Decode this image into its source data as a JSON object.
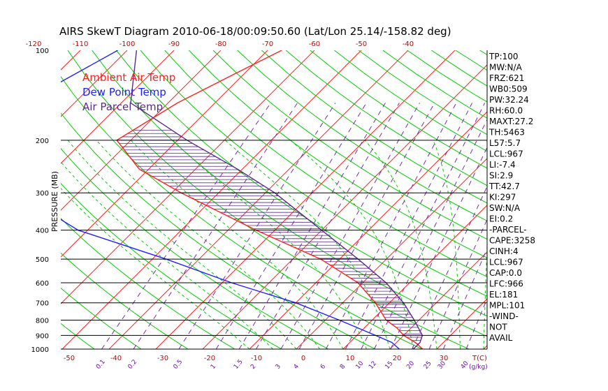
{
  "chart_data": {
    "type": "skewt",
    "title": "AIRS SkewT Diagram 2010-06-18/00:09:50.60 (Lat/Lon 25.14/-158.82 deg)",
    "ylabel": "PRESSURE (MB)",
    "y_scale": "log",
    "ylim": [
      1000,
      100
    ],
    "pressure_ticks": [
      "100",
      "200",
      "300",
      "400",
      "500",
      "600",
      "700",
      "800",
      "900",
      "1000"
    ],
    "top_temp_ticks": [
      "-120",
      "-110",
      "-100",
      "-90",
      "-80",
      "-70",
      "-60",
      "-50",
      "-40"
    ],
    "bottom_temp_ticks": [
      "-50",
      "-40",
      "-30",
      "-20",
      "-10",
      "0",
      "10",
      "20",
      "30"
    ],
    "temp_axis_label": "T(C)",
    "mixing_ratio_ticks": [
      "0.1",
      "0.2",
      "0.5",
      "1",
      "1.5",
      "2",
      "3",
      "4",
      "6",
      "8",
      "10",
      "12",
      "15",
      "20",
      "25",
      "30",
      "40"
    ],
    "mixing_ratio_label": "(g/kg)",
    "legend": [
      {
        "label": "Ambient Air Temp",
        "color": "#ff2020"
      },
      {
        "label": "Dew Point Temp",
        "color": "#2020ff"
      },
      {
        "label": "Air Parcel Temp",
        "color": "#5a2a8a"
      }
    ],
    "series": [
      {
        "name": "Ambient Air Temp",
        "color": "#ff2020",
        "points": [
          [
            100,
            -67
          ],
          [
            120,
            -72
          ],
          [
            150,
            -78
          ],
          [
            200,
            -83
          ],
          [
            250,
            -72
          ],
          [
            300,
            -58
          ],
          [
            400,
            -34
          ],
          [
            500,
            -14
          ],
          [
            600,
            -1
          ],
          [
            700,
            7
          ],
          [
            800,
            13
          ],
          [
            850,
            17
          ],
          [
            900,
            20
          ],
          [
            950,
            24
          ],
          [
            1000,
            27
          ]
        ]
      },
      {
        "name": "Dew Point Temp",
        "color": "#2020ff",
        "points": [
          [
            100,
            -102
          ],
          [
            150,
            -111
          ],
          [
            200,
            -107
          ],
          [
            300,
            -93
          ],
          [
            400,
            -72
          ],
          [
            500,
            -47
          ],
          [
            600,
            -28
          ],
          [
            700,
            -10
          ],
          [
            800,
            3
          ],
          [
            900,
            14
          ],
          [
            950,
            19
          ],
          [
            1000,
            22
          ]
        ]
      },
      {
        "name": "Air Parcel Temp",
        "color": "#5a2a8a",
        "points": [
          [
            100,
            -98
          ],
          [
            150,
            -88
          ],
          [
            200,
            -68
          ],
          [
            250,
            -51
          ],
          [
            300,
            -38
          ],
          [
            400,
            -20
          ],
          [
            500,
            -6
          ],
          [
            600,
            5
          ],
          [
            700,
            13
          ],
          [
            800,
            19
          ],
          [
            900,
            24
          ],
          [
            950,
            25
          ],
          [
            1000,
            25
          ]
        ]
      }
    ],
    "indices": [
      "TP:100",
      "MW:N/A",
      "FRZ:621",
      "WB0:509",
      "PW:32.24",
      "RH:60.0",
      "MAXT:27.2",
      "TH:5463",
      "L57:5.7",
      "LCL:967",
      "LI:-7.4",
      "SI:2.9",
      "TT:42.7",
      "KI:297",
      "SW:N/A",
      "EI:0.2",
      "-PARCEL-",
      "CAPE:3258",
      "CINH:4",
      "LCL:967",
      "CAP:0.0",
      "LFC:966",
      "EL:181",
      "MPL:101",
      "-WIND-",
      "NOT",
      "AVAIL"
    ],
    "colors": {
      "isotherm": "#ff2020",
      "dry_adiabat": "#00cc00",
      "moist_adiabat": "#00cc00",
      "mixing_ratio": "#7a2ab0",
      "isobar": "#000000",
      "cape_hatch": "#5a2a8a"
    }
  }
}
